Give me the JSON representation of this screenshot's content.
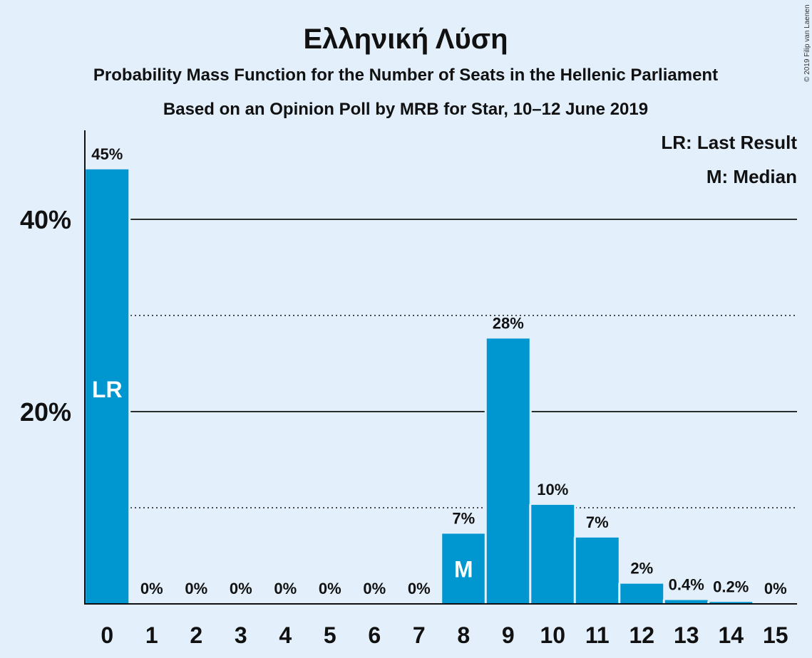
{
  "title": "Ελληνική Λύση",
  "subtitle1": "Probability Mass Function for the Number of Seats in the Hellenic Parliament",
  "subtitle2": "Based on an Opinion Poll by MRB for Star, 10–12 June 2019",
  "copyright": "© 2019 Filip van Laenen",
  "legend": {
    "lr": "LR: Last Result",
    "median": "M: Median"
  },
  "colors": {
    "bar": "#0096d0",
    "background": "#e3f0fc"
  },
  "chart_data": {
    "type": "bar",
    "categories": [
      "0",
      "1",
      "2",
      "3",
      "4",
      "5",
      "6",
      "7",
      "8",
      "9",
      "10",
      "11",
      "12",
      "13",
      "14",
      "15"
    ],
    "values": [
      45.2,
      0,
      0,
      0,
      0,
      0,
      0,
      0,
      7.3,
      27.6,
      10.3,
      6.9,
      2.1,
      0.4,
      0.2,
      0
    ],
    "labels": [
      "45%",
      "0%",
      "0%",
      "0%",
      "0%",
      "0%",
      "0%",
      "0%",
      "7%",
      "28%",
      "10%",
      "7%",
      "2%",
      "0.4%",
      "0.2%",
      "0%"
    ],
    "yticks": [
      {
        "value": 20,
        "label": "20%"
      },
      {
        "value": 40,
        "label": "40%"
      }
    ],
    "ylim": [
      0,
      49
    ],
    "gridlines": {
      "solid": [
        20,
        40
      ],
      "dotted": [
        10,
        30
      ]
    },
    "markers": [
      {
        "category": "0",
        "text": "LR"
      },
      {
        "category": "8",
        "text": "M"
      }
    ],
    "xlabel": "",
    "ylabel": ""
  }
}
